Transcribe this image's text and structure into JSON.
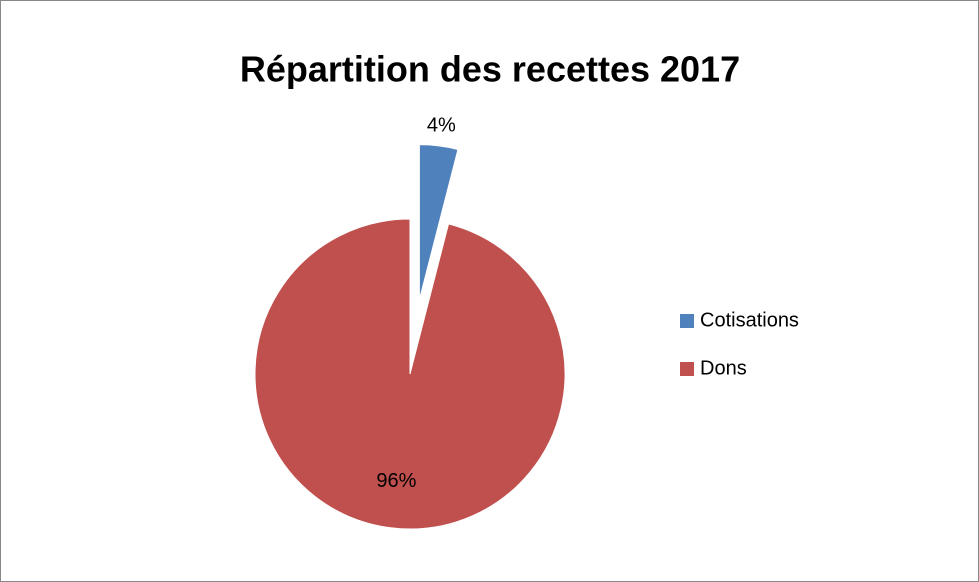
{
  "chart_data": {
    "type": "pie",
    "title": "Répartition des recettes 2017",
    "categories": [
      "Cotisations",
      "Dons"
    ],
    "values": [
      4,
      96
    ],
    "value_labels": [
      "4%",
      "96%"
    ],
    "colors": [
      "#4f81bd",
      "#c0504d"
    ],
    "legend": "right"
  }
}
